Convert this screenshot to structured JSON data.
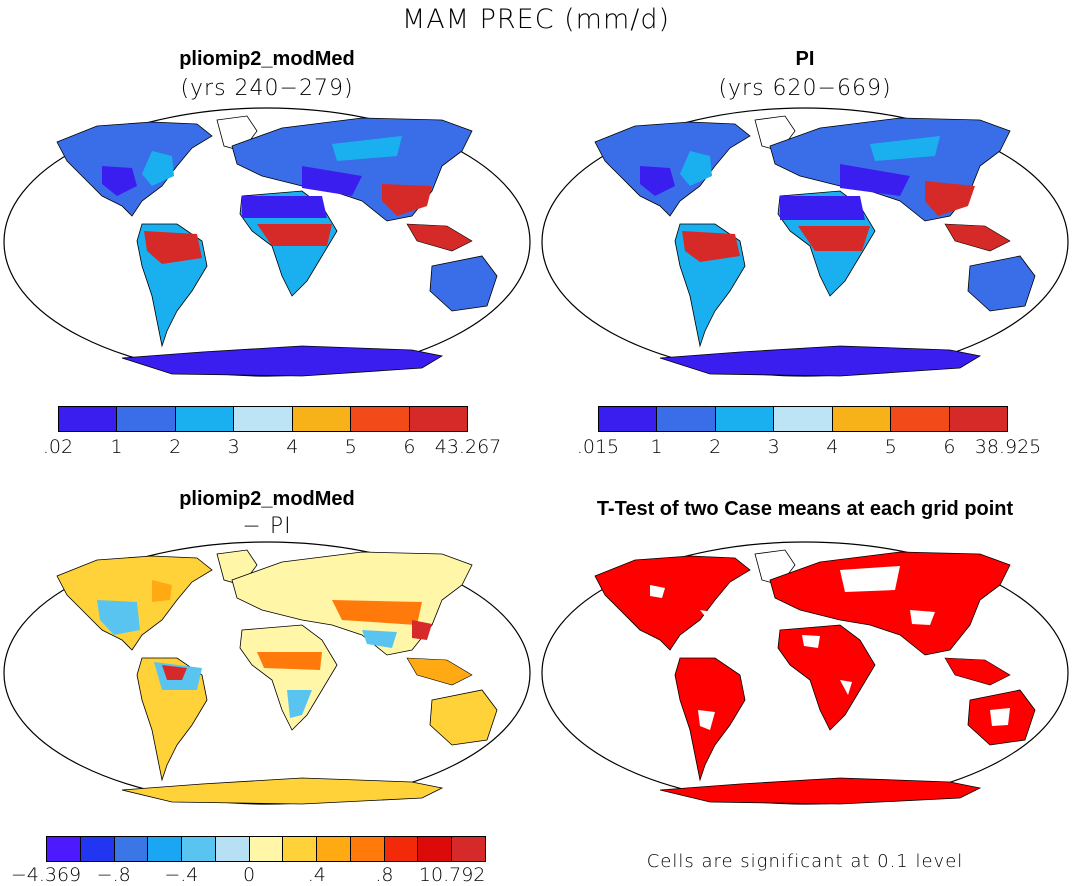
{
  "figure": {
    "title": "MAM PREC (mm/d)"
  },
  "panels": {
    "top_left": {
      "title": "pliomip2_modMed",
      "subtitle": "(yrs 240−279)"
    },
    "top_right": {
      "title": "PI",
      "subtitle": "(yrs 620−669)"
    },
    "bottom_left": {
      "title": "pliomip2_modMed",
      "subtitle": "− PI"
    },
    "bottom_right": {
      "title": "T-Test of two Case means at each grid point",
      "note": "Cells are significant at 0.1 level"
    }
  },
  "colorbars": {
    "top_left": {
      "labels": [
        ".02",
        "1",
        "2",
        "3",
        "4",
        "5",
        "6",
        "43.267"
      ],
      "colors": [
        "#3a1ef0",
        "#3a6ee8",
        "#1ab0f0",
        "#bde4f5",
        "#f7b21a",
        "#f24a18",
        "#d62a28"
      ]
    },
    "top_right": {
      "labels": [
        ".015",
        "1",
        "2",
        "3",
        "4",
        "5",
        "6",
        "38.925"
      ],
      "colors": [
        "#3a1ef0",
        "#3a6ee8",
        "#1ab0f0",
        "#bde4f5",
        "#f7b21a",
        "#f24a18",
        "#d62a28"
      ]
    },
    "bottom_left": {
      "labels": [
        "−4.369",
        "−.8",
        "−.4",
        "0",
        ".4",
        ".8",
        "10.792"
      ],
      "label_slots": [
        0,
        2,
        4,
        6,
        8,
        10,
        12
      ],
      "colors": [
        "#4d1aff",
        "#2236f2",
        "#3a76e6",
        "#1aa6f2",
        "#5ac4f0",
        "#b8e0f5",
        "#fff6a8",
        "#ffd23a",
        "#ffaa12",
        "#ff7a0a",
        "#f22a0a",
        "#dd0a0a",
        "#d62a2a"
      ]
    }
  },
  "map_colors": {
    "ocean": "#ffffff",
    "dry": "#3a1ef0",
    "mid": "#3a6ee8",
    "moist": "#1ab0f0",
    "wet": "#d62a28",
    "diff_pos": "#ffd23a",
    "diff_neg": "#5ac4f0",
    "signif": "#ff0000"
  }
}
